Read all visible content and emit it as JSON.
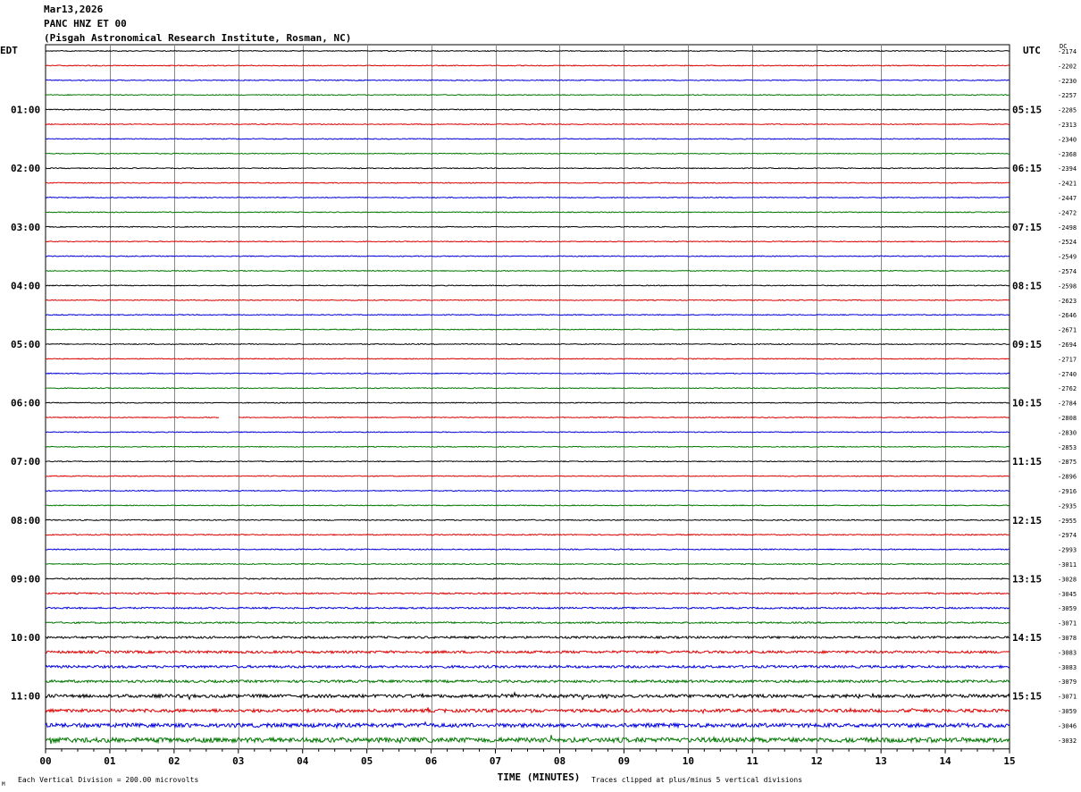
{
  "header": {
    "date": "Mar13,2026",
    "station": "PANC HNZ ET 00",
    "location": "(Pisgah Astronomical Research Institute, Rosman, NC)"
  },
  "chart_data": {
    "type": "line",
    "left_axis_label": "EDT",
    "right_axis_label": "UTC",
    "dc_label": "DC",
    "xlabel": "TIME (MINUTES)",
    "x_ticks": [
      "00",
      "01",
      "02",
      "03",
      "04",
      "05",
      "06",
      "07",
      "08",
      "09",
      "10",
      "11",
      "12",
      "13",
      "14",
      "15"
    ],
    "xlim": [
      0,
      15
    ],
    "left_hour_labels": [
      "01:00",
      "02:00",
      "03:00",
      "04:00",
      "05:00",
      "06:00",
      "07:00",
      "08:00",
      "09:00",
      "10:00",
      "11:00"
    ],
    "right_hour_labels": [
      "05:15",
      "06:15",
      "07:15",
      "08:15",
      "09:15",
      "10:15",
      "11:15",
      "12:15",
      "13:15",
      "14:15",
      "15:15"
    ],
    "trace_colors": [
      "#000000",
      "#dd0000",
      "#0000dd",
      "#007700"
    ],
    "dc_offsets": [
      "-2174",
      "-2202",
      "-2230",
      "-2257",
      "-2285",
      "-2313",
      "-2340",
      "-2368",
      "-2394",
      "-2421",
      "-2447",
      "-2472",
      "-2498",
      "-2524",
      "-2549",
      "-2574",
      "-2598",
      "-2623",
      "-2646",
      "-2671",
      "-2694",
      "-2717",
      "-2740",
      "-2762",
      "-2784",
      "-2808",
      "-2830",
      "-2853",
      "-2875",
      "-2896",
      "-2916",
      "-2935",
      "-2955",
      "-2974",
      "-2993",
      "-3011",
      "-3028",
      "-3045",
      "-3059",
      "-3071",
      "-3078",
      "-3083",
      "-3083",
      "-3079",
      "-3071",
      "-3059",
      "-3046",
      "-3032"
    ],
    "noise_level": [
      0.5,
      0.5,
      0.5,
      0.5,
      0.5,
      0.5,
      0.5,
      0.5,
      0.5,
      0.5,
      0.5,
      0.5,
      0.5,
      0.5,
      0.5,
      0.5,
      0.5,
      0.5,
      0.5,
      0.5,
      0.5,
      0.5,
      0.5,
      0.5,
      0.5,
      0.5,
      0.5,
      0.5,
      0.5,
      0.5,
      0.5,
      0.5,
      0.6,
      0.6,
      0.6,
      0.6,
      0.7,
      0.8,
      0.9,
      0.9,
      1.2,
      1.4,
      1.4,
      1.4,
      1.8,
      1.8,
      2.2,
      2.6
    ],
    "gap_minutes": [
      {
        "trace": 25,
        "from": 2.7,
        "to": 3.0
      }
    ],
    "footer_left": "Each Vertical Division =  200.00 microvolts",
    "footer_right": "Traces clipped at plus/minus 5 vertical divisions",
    "footer_mark": "M"
  }
}
